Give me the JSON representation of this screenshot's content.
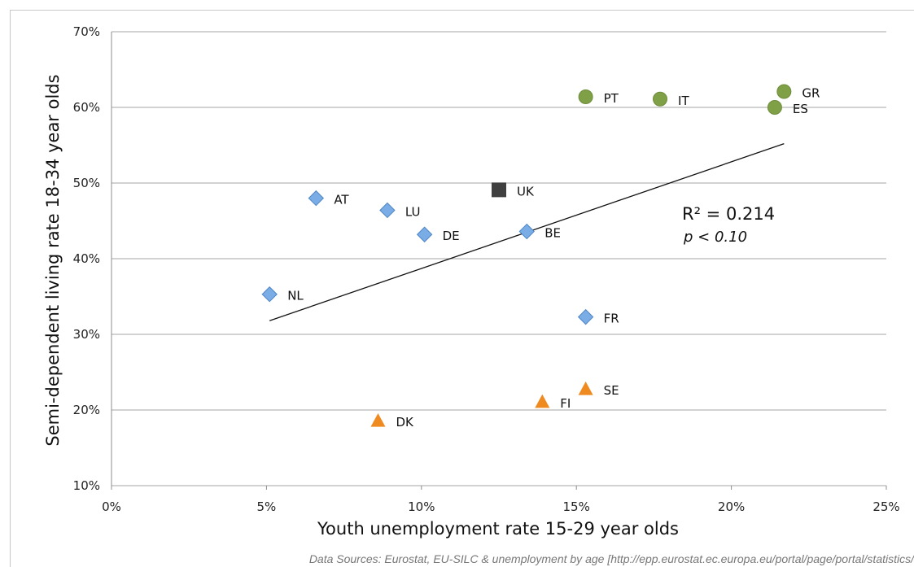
{
  "chart_data": {
    "type": "scatter",
    "xlabel": "Youth unemployment rate 15-29 year olds",
    "ylabel": "Semi-dependent living rate 18-34 year olds",
    "xlim": [
      0,
      25
    ],
    "ylim": [
      10,
      70
    ],
    "x_ticks": [
      "0%",
      "5%",
      "10%",
      "15%",
      "20%",
      "25%"
    ],
    "x_tick_values": [
      0,
      5,
      10,
      15,
      20,
      25
    ],
    "y_ticks": [
      "10%",
      "20%",
      "30%",
      "40%",
      "50%",
      "60%",
      "70%"
    ],
    "y_tick_values": [
      10,
      20,
      30,
      40,
      50,
      60,
      70
    ],
    "grid": "horizontal",
    "series": [
      {
        "marker": "diamond",
        "color": "#7aade6",
        "points": [
          {
            "label": "AT",
            "x": 6.6,
            "y": 48.0
          },
          {
            "label": "LU",
            "x": 8.9,
            "y": 46.4
          },
          {
            "label": "DE",
            "x": 10.1,
            "y": 43.2
          },
          {
            "label": "BE",
            "x": 13.4,
            "y": 43.6
          },
          {
            "label": "NL",
            "x": 5.1,
            "y": 35.3
          },
          {
            "label": "FR",
            "x": 15.3,
            "y": 32.3
          }
        ]
      },
      {
        "marker": "square",
        "color": "#404040",
        "points": [
          {
            "label": "UK",
            "x": 12.5,
            "y": 49.1
          }
        ]
      },
      {
        "marker": "circle",
        "color": "#80a048",
        "points": [
          {
            "label": "PT",
            "x": 15.3,
            "y": 61.4
          },
          {
            "label": "IT",
            "x": 17.7,
            "y": 61.1
          },
          {
            "label": "GR",
            "x": 21.7,
            "y": 62.1
          },
          {
            "label": "ES",
            "x": 21.4,
            "y": 60.0
          }
        ]
      },
      {
        "marker": "triangle",
        "color": "#ee8a20",
        "points": [
          {
            "label": "SE",
            "x": 15.3,
            "y": 22.8
          },
          {
            "label": "FI",
            "x": 13.9,
            "y": 21.1
          },
          {
            "label": "DK",
            "x": 8.6,
            "y": 18.6
          }
        ]
      }
    ],
    "trendline": {
      "x": [
        5.1,
        21.7
      ],
      "y": [
        31.8,
        55.2
      ]
    },
    "annotations": {
      "r_squared": "R² = 0.214",
      "p_value": "p < 0.10"
    }
  },
  "source_note": "Data Sources: Eurostat, EU-SILC & unemployment by age [http://epp.eurostat.ec.europa.eu/portal/page/portal/statistics/"
}
